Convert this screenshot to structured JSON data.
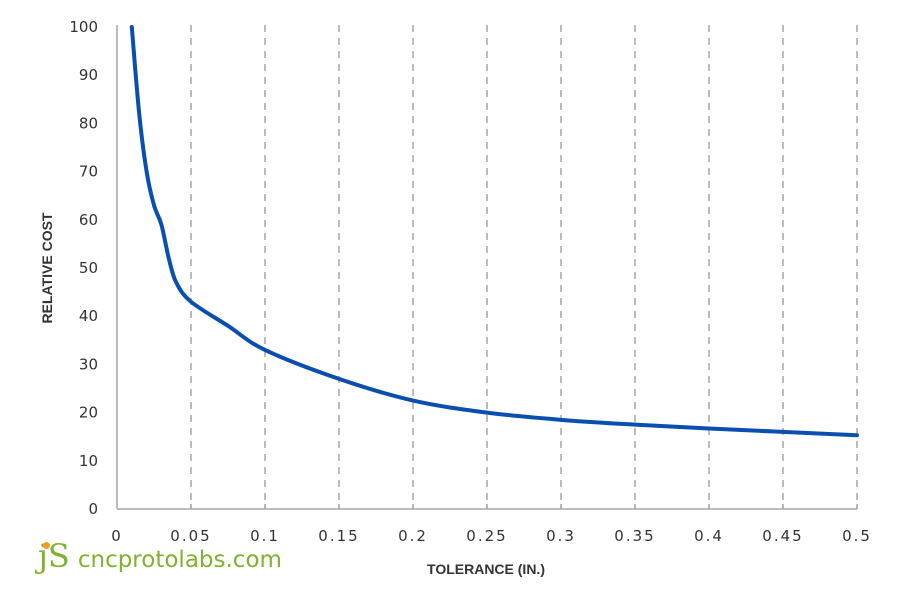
{
  "chart_data": {
    "type": "line",
    "title": "",
    "xlabel": "TOLERANCE (IN.)",
    "ylabel": "RELATIVE COST",
    "xlim": [
      0,
      0.5
    ],
    "ylim": [
      0,
      100
    ],
    "x_ticks": [
      "0",
      "0.05",
      "0.1",
      "0.15",
      "0.2",
      "0.25",
      "0.3",
      "0.35",
      "0.4",
      "0.45",
      "0.5"
    ],
    "y_ticks": [
      "0",
      "10",
      "20",
      "30",
      "40",
      "50",
      "60",
      "70",
      "80",
      "90",
      "100"
    ],
    "grid": "vertical dashed",
    "legend": "none",
    "series": [
      {
        "name": "Relative Cost",
        "color": "#0a4fb0",
        "x": [
          0.01,
          0.015,
          0.02,
          0.025,
          0.03,
          0.035,
          0.04,
          0.05,
          0.075,
          0.1,
          0.15,
          0.2,
          0.25,
          0.3,
          0.35,
          0.4,
          0.45,
          0.5
        ],
        "y": [
          100,
          82,
          70,
          63,
          59,
          52,
          47,
          43,
          38,
          33,
          27,
          22.5,
          20,
          18.5,
          17.5,
          16.7,
          16,
          15.3
        ]
      }
    ]
  },
  "branding": {
    "logo_mark": "jS",
    "logo_text": "cncprotolabs.com"
  },
  "colors": {
    "line": "#0a4fb0",
    "grid": "#a6a6a6",
    "axis": "#a6a6a6",
    "logo_green": "#7fb22e",
    "logo_orange": "#f39c1f"
  }
}
